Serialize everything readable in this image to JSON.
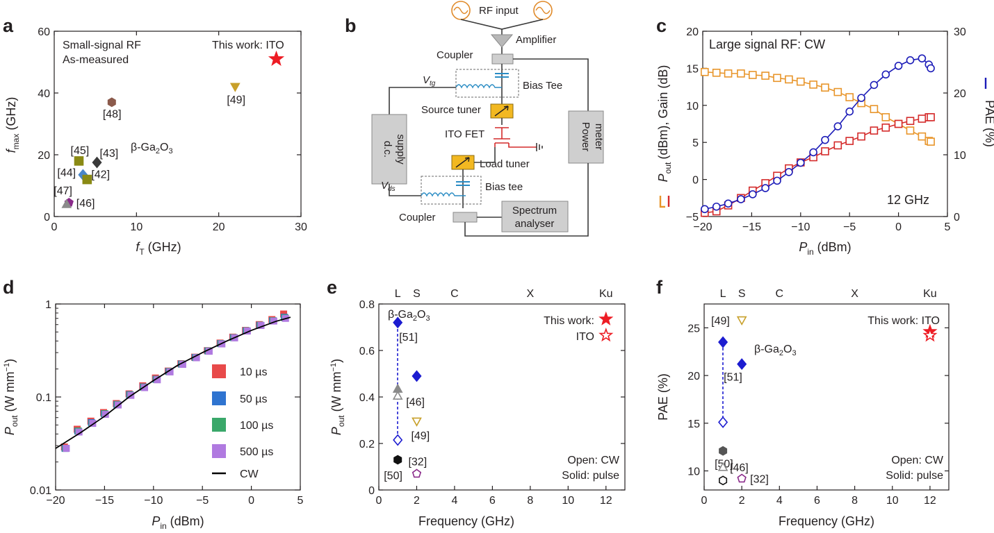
{
  "panels": {
    "a": "a",
    "b": "b",
    "c": "c",
    "d": "d",
    "e": "e",
    "f": "f"
  },
  "chart_data": [
    {
      "panel": "a",
      "type": "scatter",
      "xlabel_main": "f",
      "xlabel_sub": "T",
      "xlabel_unit": " (GHz)",
      "ylabel_main": "f",
      "ylabel_sub": "max",
      "ylabel_unit": " (GHz)",
      "xlim": [
        0,
        30
      ],
      "ylim": [
        0,
        60
      ],
      "xticks": [
        0,
        10,
        20,
        30
      ],
      "yticks": [
        0,
        20,
        40,
        60
      ],
      "annotations": {
        "line1": "Small-signal RF",
        "line2": "As-measured",
        "thiswork": "This work: ITO",
        "material_main": "β-Ga",
        "material_sub1": "2",
        "material_mid": "O",
        "material_sub2": "3"
      },
      "points": [
        {
          "label": "This work: ITO",
          "x": 27,
          "y": 51,
          "marker": "star",
          "color": "#ed1c24"
        },
        {
          "label": "[49]",
          "x": 22,
          "y": 42,
          "marker": "triangle-down",
          "color": "#c8a02a"
        },
        {
          "label": "[48]",
          "x": 7,
          "y": 37,
          "marker": "hexagon",
          "color": "#8b5a4b"
        },
        {
          "label": "[45]",
          "x": 3,
          "y": 18,
          "marker": "square",
          "color": "#8a8a14"
        },
        {
          "label": "[43]",
          "x": 5.2,
          "y": 17.5,
          "marker": "diamond",
          "color": "#3a3a3a"
        },
        {
          "label": "[44]",
          "x": 3.5,
          "y": 13.5,
          "marker": "diamond",
          "color": "#4a86c8"
        },
        {
          "label": "[42]",
          "x": 4,
          "y": 12,
          "marker": "square",
          "color": "#8a8a14"
        },
        {
          "label": "[47]",
          "x": 1.8,
          "y": 4.5,
          "marker": "pentagon",
          "color": "#8a2a8a"
        },
        {
          "label": "[46]",
          "x": 1.5,
          "y": 4,
          "marker": "triangle-up",
          "color": "#8a8a8a"
        }
      ]
    },
    {
      "panel": "b",
      "type": "diagram",
      "labels": {
        "rf_input": "RF input",
        "amplifier": "Amplifier",
        "coupler_top": "Coupler",
        "bias_tee_top": "Bias Tee",
        "vtg_main": "V",
        "vtg_sub": "tg",
        "source_tuner": "Source tuner",
        "dc_supply_1": "d.c.",
        "dc_supply_2": "supply",
        "power_meter_1": "Power",
        "power_meter_2": "meter",
        "ito_fet": "ITO FET",
        "load_tuner": "Load tuner",
        "vds_main": "V",
        "vds_sub": "ds",
        "bias_tee_bottom": "Bias tee",
        "coupler_bottom": "Coupler",
        "spectrum_1": "Spectrum",
        "spectrum_2": "analyser"
      }
    },
    {
      "panel": "c",
      "type": "line",
      "title": "Large signal RF: CW",
      "freq_label": "12 GHz",
      "xlabel_main": "P",
      "xlabel_sub": "in",
      "xlabel_unit": " (dBm)",
      "ylabel_left": "(dBm), Gain (dB)",
      "ylabel_left_main": "P",
      "ylabel_left_sub": "out",
      "ylabel_right": "PAE (%)",
      "xlim": [
        -20,
        5
      ],
      "ylim_left": [
        -5,
        20
      ],
      "ylim_right": [
        0,
        30
      ],
      "xticks": [
        -20,
        -15,
        -10,
        -5,
        0,
        5
      ],
      "yticks_left": [
        -5,
        0,
        5,
        10,
        15,
        20
      ],
      "yticks_right": [
        0,
        10,
        20,
        30
      ],
      "x": [
        -19.8,
        -18.6,
        -17.4,
        -16.1,
        -14.9,
        -13.6,
        -12.4,
        -11.2,
        -10.0,
        -8.7,
        -7.5,
        -6.2,
        -5.0,
        -3.8,
        -2.5,
        -1.3,
        0.0,
        1.2,
        2.4,
        3.1,
        3.3
      ],
      "series": [
        {
          "name": "",
          "axis": "left",
          "marker": "square",
          "color": "#e8952a",
          "values": [
            14.5,
            14.4,
            14.3,
            14.3,
            14.1,
            14.0,
            13.7,
            13.5,
            13.2,
            12.8,
            12.4,
            11.8,
            11.1,
            10.3,
            9.5,
            8.4,
            7.5,
            6.6,
            5.8,
            5.2,
            5.1
          ]
        },
        {
          "name": "",
          "axis": "left",
          "marker": "square",
          "color": "#d42a2a",
          "values": [
            -4.5,
            -4.3,
            -3.5,
            -2.5,
            -1.5,
            -0.5,
            0.5,
            1.5,
            2.3,
            3.0,
            3.8,
            4.6,
            5.2,
            5.8,
            6.6,
            7.0,
            7.5,
            7.9,
            8.2,
            8.4,
            8.4
          ]
        },
        {
          "name": "",
          "axis": "right",
          "marker": "circle",
          "color": "#1c1cb8",
          "values": [
            1.2,
            1.6,
            2.1,
            2.8,
            3.6,
            4.6,
            5.8,
            7.2,
            8.7,
            10.4,
            12.4,
            14.6,
            17.0,
            19.2,
            21.3,
            23.0,
            24.4,
            25.3,
            25.6,
            24.6,
            24.0
          ]
        }
      ]
    },
    {
      "panel": "d",
      "type": "scatter",
      "yscale": "log",
      "xlabel_main": "P",
      "xlabel_sub": "in",
      "xlabel_unit": " (dBm)",
      "ylabel_main": "P",
      "ylabel_sub": "out",
      "ylabel_unit_a": " (W mm",
      "ylabel_unit_sup": "−1",
      "ylabel_unit_b": ")",
      "xlim": [
        -20,
        5
      ],
      "ylim": [
        0.01,
        1
      ],
      "xticks": [
        -20,
        -15,
        -10,
        -5,
        0,
        5
      ],
      "yticks": [
        "0.01",
        "0.1",
        "1"
      ],
      "x": [
        -19.0,
        -17.7,
        -16.3,
        -15.0,
        -13.7,
        -12.4,
        -11.0,
        -9.7,
        -8.4,
        -7.1,
        -5.7,
        -4.4,
        -3.1,
        -1.8,
        -0.5,
        0.9,
        2.2,
        3.4
      ],
      "series": [
        {
          "name": "10 µs",
          "color": "#e84a4a",
          "values": [
            0.029,
            0.045,
            0.055,
            0.068,
            0.085,
            0.108,
            0.132,
            0.16,
            0.19,
            0.228,
            0.268,
            0.315,
            0.38,
            0.44,
            0.52,
            0.6,
            0.68,
            0.78
          ]
        },
        {
          "name": "50 µs",
          "color": "#2f74d0",
          "values": [
            0.028,
            0.043,
            0.053,
            0.066,
            0.083,
            0.106,
            0.128,
            0.155,
            0.188,
            0.226,
            0.266,
            0.313,
            0.375,
            0.435,
            0.515,
            0.59,
            0.66,
            0.72
          ]
        },
        {
          "name": "100 µs",
          "color": "#3aa86a",
          "values": [
            0.028,
            0.043,
            0.052,
            0.066,
            0.083,
            0.105,
            0.127,
            0.154,
            0.187,
            0.225,
            0.265,
            0.312,
            0.374,
            0.434,
            0.514,
            0.59,
            0.66,
            0.71
          ]
        },
        {
          "name": "500 µs",
          "color": "#b07ae0",
          "values": [
            0.028,
            0.042,
            0.052,
            0.065,
            0.082,
            0.104,
            0.126,
            0.153,
            0.186,
            0.224,
            0.264,
            0.31,
            0.372,
            0.432,
            0.512,
            0.588,
            0.655,
            0.7
          ]
        },
        {
          "name": "CW",
          "color": "#000000",
          "line": true,
          "x": [
            -20,
            -17.5,
            -15,
            -12.5,
            -10,
            -7.5,
            -5,
            -2.5,
            0,
            2.5,
            4
          ],
          "values": [
            0.028,
            0.041,
            0.062,
            0.1,
            0.15,
            0.22,
            0.3,
            0.4,
            0.52,
            0.65,
            0.72
          ]
        }
      ]
    },
    {
      "panel": "e",
      "type": "scatter",
      "xlabel": "Frequency (GHz)",
      "ylabel_main": "P",
      "ylabel_sub": "out",
      "ylabel_unit_a": " (W mm",
      "ylabel_unit_sup": "−1",
      "ylabel_unit_b": ")",
      "xlim": [
        0,
        13
      ],
      "ylim": [
        0,
        0.8
      ],
      "xticks": [
        0,
        2,
        4,
        6,
        8,
        10,
        12
      ],
      "yticks": [
        "0",
        "0.2",
        "0.4",
        "0.6",
        "0.8"
      ],
      "bands": [
        {
          "name": "L",
          "x": 1
        },
        {
          "name": "S",
          "x": 2
        },
        {
          "name": "C",
          "x": 4
        },
        {
          "name": "X",
          "x": 8
        },
        {
          "name": "Ku",
          "x": 12
        }
      ],
      "legend": {
        "this_work": "This work:",
        "ito": "ITO",
        "open": "Open: CW",
        "solid": "Solid: pulse",
        "material_main": "β-Ga",
        "material_sub1": "2",
        "material_mid": "O",
        "material_sub2": "3"
      },
      "points": [
        {
          "label": "[51]",
          "x": 1,
          "y": 0.72,
          "marker": "diamond",
          "color": "#1c1cd0",
          "filled": true
        },
        {
          "label": "",
          "x": 2,
          "y": 0.49,
          "marker": "diamond",
          "color": "#1c1cd0",
          "filled": true
        },
        {
          "label": "",
          "x": 1,
          "y": 0.215,
          "marker": "diamond",
          "color": "#1c1cd0",
          "filled": false
        },
        {
          "label": "[46]",
          "x": 1,
          "y": 0.435,
          "marker": "triangle-up",
          "color": "#8a8a8a",
          "filled": true
        },
        {
          "label": "",
          "x": 1,
          "y": 0.405,
          "marker": "triangle-up",
          "color": "#8a8a8a",
          "filled": false
        },
        {
          "label": "[49]",
          "x": 2,
          "y": 0.295,
          "marker": "triangle-down",
          "color": "#c8a02a",
          "filled": false
        },
        {
          "label": "[32]",
          "x": 2,
          "y": 0.07,
          "marker": "pentagon",
          "color": "#8a2a8a",
          "filled": false
        },
        {
          "label": "[50]",
          "x": 1,
          "y": 0.13,
          "marker": "hexagon",
          "color": "#111111",
          "filled": true
        },
        {
          "label": "",
          "x": 12,
          "y": 0.735,
          "marker": "star",
          "color": "#ed1c24",
          "filled": true
        },
        {
          "label": "",
          "x": 12,
          "y": 0.665,
          "marker": "star",
          "color": "#ed1c24",
          "filled": false
        }
      ]
    },
    {
      "panel": "f",
      "type": "scatter",
      "xlabel": "Frequency (GHz)",
      "ylabel": "PAE (%)",
      "xlim": [
        0,
        13
      ],
      "ylim": [
        8,
        27.5
      ],
      "xticks": [
        0,
        2,
        4,
        6,
        8,
        10,
        12
      ],
      "yticks": [
        10,
        15,
        20,
        25
      ],
      "bands": [
        {
          "name": "L",
          "x": 1
        },
        {
          "name": "S",
          "x": 2
        },
        {
          "name": "C",
          "x": 4
        },
        {
          "name": "X",
          "x": 8
        },
        {
          "name": "Ku",
          "x": 12
        }
      ],
      "legend": {
        "this_work": "This work: ITO",
        "open": "Open: CW",
        "solid": "Solid: pulse",
        "material_main": "β-Ga",
        "material_sub1": "2",
        "material_mid": "O",
        "material_sub2": "3"
      },
      "points": [
        {
          "label": "[49]",
          "x": 2,
          "y": 25.8,
          "marker": "triangle-down",
          "color": "#c8a02a",
          "filled": false
        },
        {
          "label": "",
          "x": 1,
          "y": 23.5,
          "marker": "diamond",
          "color": "#1c1cd0",
          "filled": true
        },
        {
          "label": "[51]",
          "x": 2,
          "y": 21.2,
          "marker": "diamond",
          "color": "#1c1cd0",
          "filled": true
        },
        {
          "label": "",
          "x": 1,
          "y": 15.1,
          "marker": "diamond",
          "color": "#1c1cd0",
          "filled": false
        },
        {
          "label": "[50]",
          "x": 1,
          "y": 12.1,
          "marker": "hexagon",
          "color": "#555555",
          "filled": true
        },
        {
          "label": "[46]",
          "x": 1,
          "y": 10.4,
          "marker": "triangle-up",
          "color": "#8a8a8a",
          "filled": false
        },
        {
          "label": "",
          "x": 1,
          "y": 9.0,
          "marker": "hexagon",
          "color": "#111111",
          "filled": false
        },
        {
          "label": "[32]",
          "x": 2,
          "y": 9.2,
          "marker": "pentagon",
          "color": "#8a2a8a",
          "filled": false
        },
        {
          "label": "",
          "x": 12,
          "y": 24.6,
          "marker": "star",
          "color": "#ed1c24",
          "filled": true
        },
        {
          "label": "",
          "x": 12,
          "y": 24.2,
          "marker": "star",
          "color": "#ed1c24",
          "filled": false
        }
      ]
    }
  ]
}
